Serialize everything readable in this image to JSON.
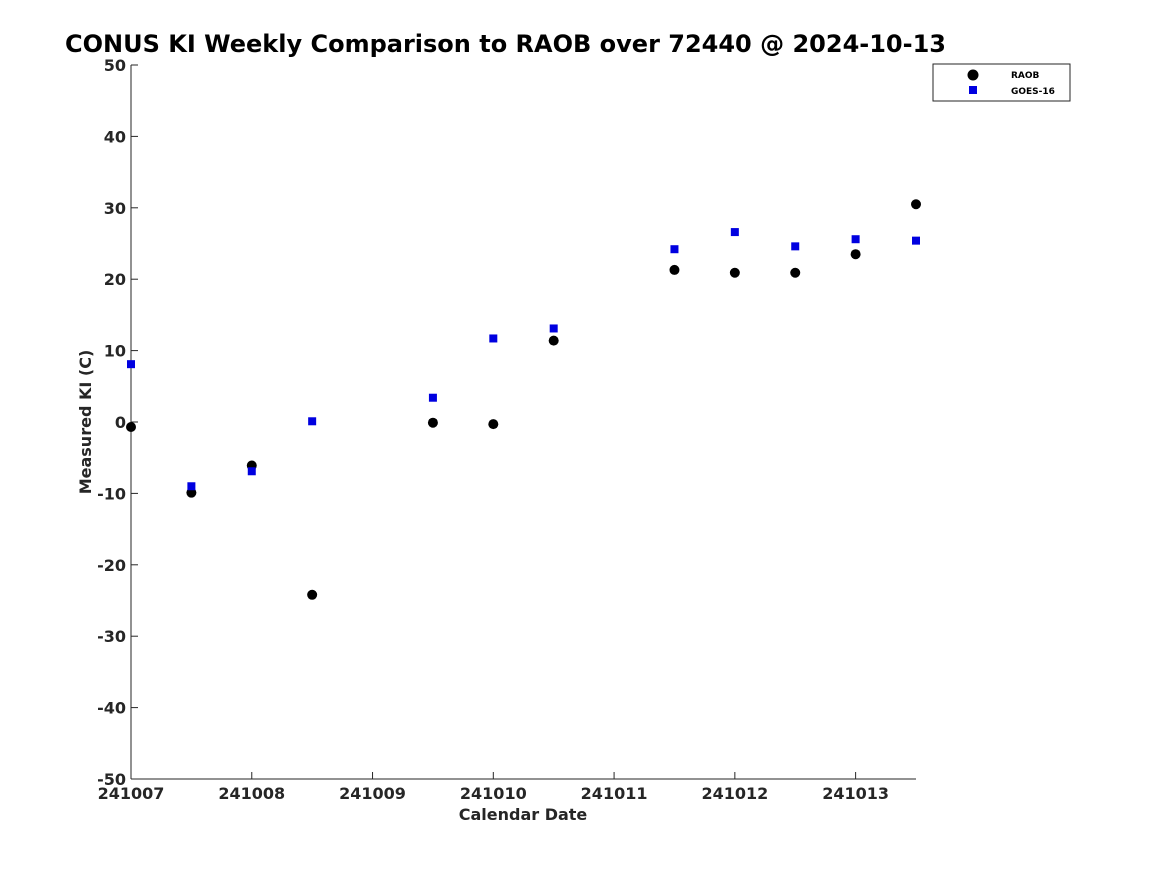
{
  "chart_data": {
    "type": "scatter",
    "title": "CONUS KI Weekly Comparison to RAOB over 72440 @ 2024-10-13",
    "xlabel": "Calendar Date",
    "ylabel": "Measured KI (C)",
    "x_ticks": [
      "241007",
      "241008",
      "241009",
      "241010",
      "241011",
      "241012",
      "241013"
    ],
    "xlim": [
      0,
      6.5
    ],
    "ylim": [
      -50,
      50
    ],
    "y_ticks": [
      -50,
      -40,
      -30,
      -20,
      -10,
      0,
      10,
      20,
      30,
      40,
      50
    ],
    "grid": false,
    "legend_position": "top-right",
    "series": [
      {
        "name": "RAOB",
        "marker": "circle",
        "color": "#000000",
        "x": [
          0,
          0.5,
          1,
          1.5,
          2.5,
          3,
          3.5,
          4.5,
          5,
          5.5,
          6,
          6.5
        ],
        "y": [
          -0.7,
          -9.9,
          -6.1,
          -24.2,
          -0.1,
          -0.3,
          11.4,
          21.3,
          20.9,
          20.9,
          23.5,
          30.5
        ]
      },
      {
        "name": "GOES-16",
        "marker": "square",
        "color": "#0000e0",
        "x": [
          0,
          0.5,
          1,
          1.5,
          2.5,
          3,
          3.5,
          4.5,
          5,
          5.5,
          6,
          6.5
        ],
        "y": [
          8.1,
          -9.0,
          -6.9,
          0.1,
          3.4,
          11.7,
          13.1,
          24.2,
          26.6,
          24.6,
          25.6,
          25.4
        ]
      }
    ]
  }
}
